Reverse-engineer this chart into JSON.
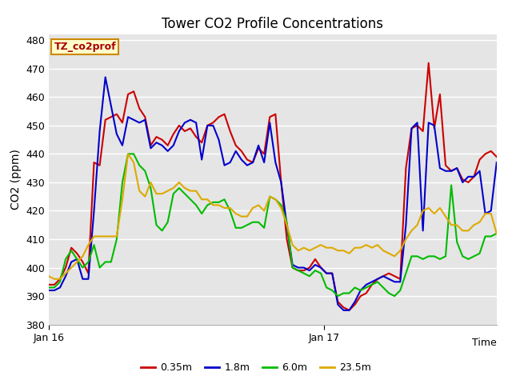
{
  "title": "Tower CO2 Profile Concentrations",
  "ylabel": "CO2 (ppm)",
  "xlabel": "Time",
  "ylim": [
    380,
    482
  ],
  "yticks": [
    380,
    390,
    400,
    410,
    420,
    430,
    440,
    450,
    460,
    470,
    480
  ],
  "xtick_labels": [
    "Jan 16",
    "Jan 17"
  ],
  "xtick_positions": [
    0.0,
    0.615
  ],
  "legend_label": "TZ_co2prof",
  "series_labels": [
    "0.35m",
    "1.8m",
    "6.0m",
    "23.5m"
  ],
  "series_colors": [
    "#cc0000",
    "#0000cc",
    "#00bb00",
    "#ddaa00"
  ],
  "background_color": "#e5e5e5",
  "grid_color": "#ffffff",
  "n_points": 80,
  "red_data": [
    394,
    394,
    396,
    400,
    407,
    405,
    402,
    398,
    437,
    436,
    452,
    453,
    454,
    451,
    461,
    462,
    456,
    453,
    443,
    446,
    445,
    443,
    447,
    450,
    448,
    449,
    446,
    444,
    450,
    451,
    453,
    454,
    448,
    443,
    441,
    438,
    437,
    442,
    440,
    453,
    454,
    430,
    410,
    400,
    399,
    399,
    400,
    403,
    400,
    398,
    398,
    388,
    386,
    385,
    387,
    390,
    391,
    394,
    396,
    397,
    398,
    397,
    396,
    435,
    449,
    450,
    448,
    472,
    449,
    461,
    436,
    434,
    435,
    431,
    430,
    432,
    438,
    440,
    441,
    439
  ],
  "blue_data": [
    392,
    392,
    393,
    397,
    402,
    403,
    396,
    396,
    420,
    448,
    467,
    457,
    447,
    443,
    453,
    452,
    451,
    452,
    442,
    444,
    443,
    441,
    443,
    448,
    451,
    452,
    451,
    438,
    450,
    450,
    445,
    436,
    437,
    441,
    438,
    436,
    437,
    443,
    437,
    451,
    437,
    430,
    415,
    401,
    400,
    400,
    399,
    401,
    400,
    398,
    398,
    387,
    385,
    385,
    388,
    392,
    394,
    395,
    396,
    397,
    396,
    395,
    395,
    415,
    449,
    451,
    413,
    451,
    450,
    435,
    434,
    434,
    435,
    430,
    432,
    432,
    434,
    419,
    420,
    437
  ],
  "green_data": [
    393,
    393,
    395,
    403,
    406,
    403,
    400,
    402,
    408,
    400,
    402,
    402,
    410,
    430,
    440,
    440,
    436,
    434,
    428,
    415,
    413,
    416,
    426,
    428,
    426,
    424,
    422,
    419,
    422,
    423,
    423,
    424,
    420,
    414,
    414,
    415,
    416,
    416,
    414,
    425,
    424,
    422,
    416,
    400,
    399,
    398,
    397,
    399,
    398,
    393,
    392,
    390,
    391,
    391,
    393,
    392,
    393,
    394,
    395,
    393,
    391,
    390,
    392,
    398,
    404,
    404,
    403,
    404,
    404,
    403,
    404,
    429,
    409,
    404,
    403,
    404,
    405,
    411,
    411,
    412
  ],
  "orange_data": [
    397,
    396,
    396,
    398,
    400,
    402,
    404,
    408,
    411,
    411,
    411,
    411,
    411,
    424,
    440,
    437,
    427,
    425,
    430,
    426,
    426,
    427,
    428,
    430,
    428,
    427,
    427,
    424,
    424,
    422,
    422,
    421,
    421,
    419,
    418,
    418,
    421,
    422,
    420,
    425,
    424,
    421,
    415,
    408,
    406,
    407,
    406,
    407,
    408,
    407,
    407,
    406,
    406,
    405,
    407,
    407,
    408,
    407,
    408,
    406,
    405,
    404,
    406,
    410,
    413,
    415,
    420,
    421,
    419,
    421,
    418,
    415,
    415,
    413,
    413,
    415,
    416,
    419,
    419,
    412
  ]
}
